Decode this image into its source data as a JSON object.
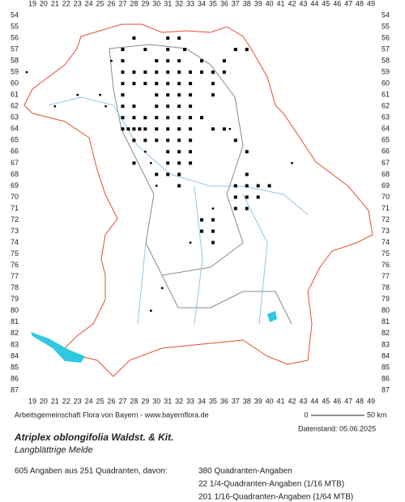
{
  "map": {
    "columns": [
      19,
      20,
      21,
      22,
      23,
      24,
      25,
      26,
      27,
      28,
      29,
      30,
      31,
      32,
      33,
      34,
      35,
      36,
      37,
      38,
      39,
      40,
      41,
      42,
      43,
      44,
      45,
      46,
      47,
      48,
      49
    ],
    "rows": [
      54,
      55,
      56,
      57,
      58,
      59,
      60,
      61,
      62,
      63,
      64,
      65,
      66,
      67,
      68,
      69,
      70,
      71,
      72,
      73,
      74,
      75,
      76,
      77,
      78,
      79,
      80,
      81,
      82,
      83,
      84,
      85,
      86,
      87
    ],
    "quadrant_records": [
      [
        28,
        56
      ],
      [
        31,
        56
      ],
      [
        32,
        56
      ],
      [
        27,
        57
      ],
      [
        29,
        57
      ],
      [
        31,
        57
      ],
      [
        32.5,
        57
      ],
      [
        37,
        57
      ],
      [
        38,
        57
      ],
      [
        27,
        58
      ],
      [
        30,
        58
      ],
      [
        31,
        58
      ],
      [
        32,
        58
      ],
      [
        34,
        58
      ],
      [
        36,
        58
      ],
      [
        27,
        59
      ],
      [
        28,
        59
      ],
      [
        29,
        59
      ],
      [
        30,
        59
      ],
      [
        31,
        59
      ],
      [
        32,
        59
      ],
      [
        33,
        59
      ],
      [
        34,
        59
      ],
      [
        35,
        59
      ],
      [
        36,
        59
      ],
      [
        27,
        60
      ],
      [
        28,
        60
      ],
      [
        29,
        60
      ],
      [
        30,
        60
      ],
      [
        31,
        60
      ],
      [
        32,
        60
      ],
      [
        33,
        60
      ],
      [
        35,
        60
      ],
      [
        27,
        61
      ],
      [
        30,
        61
      ],
      [
        31,
        61
      ],
      [
        32,
        61
      ],
      [
        33,
        61
      ],
      [
        35,
        61
      ],
      [
        27,
        62
      ],
      [
        28,
        62
      ],
      [
        30,
        62
      ],
      [
        31,
        62
      ],
      [
        32,
        62
      ],
      [
        33,
        62
      ],
      [
        27,
        63
      ],
      [
        28,
        63
      ],
      [
        29,
        63
      ],
      [
        30,
        63
      ],
      [
        31,
        63
      ],
      [
        32,
        63
      ],
      [
        33,
        63
      ],
      [
        34,
        63
      ],
      [
        27,
        64
      ],
      [
        27.5,
        64
      ],
      [
        28,
        64
      ],
      [
        28.5,
        64
      ],
      [
        29,
        64
      ],
      [
        30,
        64
      ],
      [
        31,
        64
      ],
      [
        32,
        64
      ],
      [
        33,
        64
      ],
      [
        35,
        64
      ],
      [
        36,
        64
      ],
      [
        28,
        65
      ],
      [
        29,
        65
      ],
      [
        30,
        65
      ],
      [
        31,
        65
      ],
      [
        32,
        65
      ],
      [
        33,
        65
      ],
      [
        37,
        65
      ],
      [
        31,
        66
      ],
      [
        32,
        66
      ],
      [
        33,
        66
      ],
      [
        38,
        66
      ],
      [
        28,
        67
      ],
      [
        31,
        67
      ],
      [
        32,
        67
      ],
      [
        33,
        67
      ],
      [
        30,
        68
      ],
      [
        31,
        68
      ],
      [
        32,
        68
      ],
      [
        38,
        68
      ],
      [
        32,
        69
      ],
      [
        37,
        69
      ],
      [
        38,
        69
      ],
      [
        39,
        69
      ],
      [
        40,
        69
      ],
      [
        37,
        70
      ],
      [
        38,
        70
      ],
      [
        39,
        70
      ],
      [
        37,
        71
      ],
      [
        38,
        71
      ],
      [
        34,
        72
      ],
      [
        35,
        72
      ],
      [
        34,
        73
      ],
      [
        35,
        73
      ],
      [
        35,
        74
      ]
    ],
    "small_records": [
      [
        18.5,
        59
      ],
      [
        21,
        62
      ],
      [
        23,
        61
      ],
      [
        25,
        61
      ],
      [
        25.5,
        62
      ],
      [
        26,
        58
      ],
      [
        29,
        66
      ],
      [
        29.5,
        67
      ],
      [
        30,
        69
      ],
      [
        33,
        74
      ],
      [
        30.5,
        78
      ],
      [
        29.5,
        80
      ],
      [
        42,
        67
      ],
      [
        36.5,
        64
      ],
      [
        35,
        71
      ]
    ]
  },
  "footer": {
    "source": "Arbeitsgemeinschaft Flora von Bayern - www.bayernflora.de",
    "scale_start": "0",
    "scale_end": "50 km",
    "date": "Datenstand: 05.06.2025",
    "title": "Atriplex oblongifolia Waldst. & Kit.",
    "subtitle": "Langblättrige Melde",
    "summary": "605 Angaben aus 251 Quadranten, davon:",
    "legend": [
      "380 Quadranten-Angaben",
      "22 1/4-Quadranten-Angaben (1/16 MTB)",
      "201 1/16-Quadranten-Angaben (1/64 MTB)"
    ]
  }
}
